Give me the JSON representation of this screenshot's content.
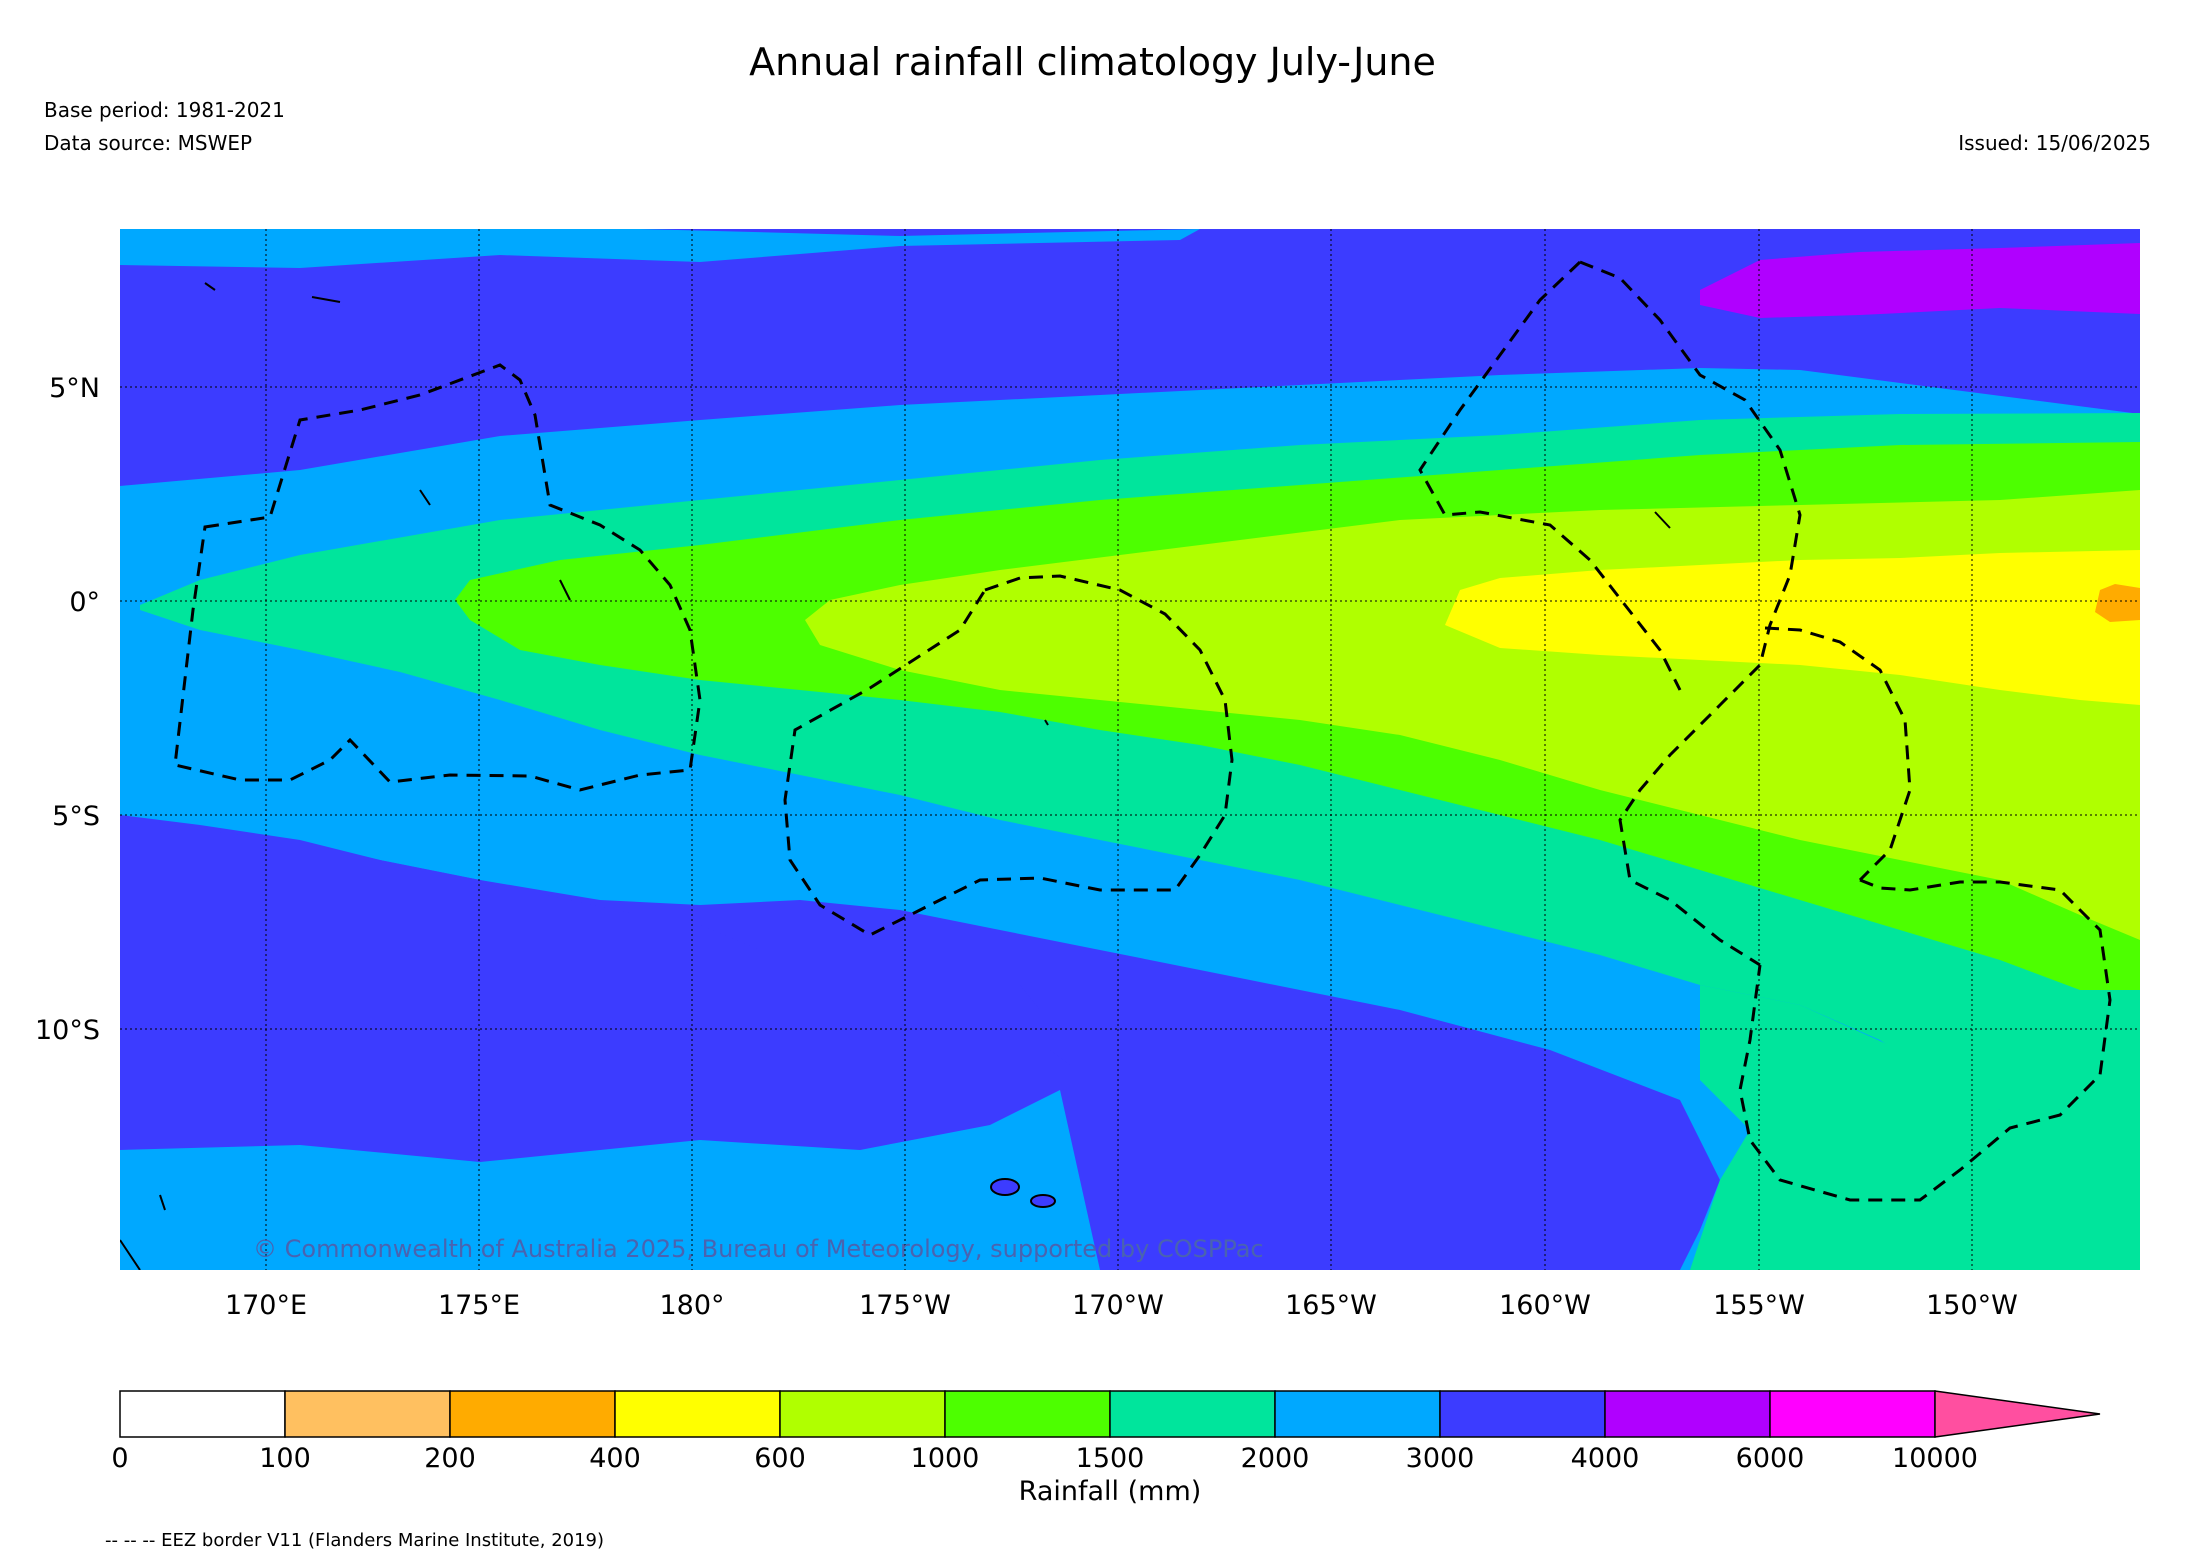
{
  "title": "Annual rainfall climatology July-June",
  "base_period": "Base period: 1981-2021",
  "data_source": "Data source: MSWEP",
  "issued": "Issued: 15/06/2025",
  "copyright": "© Commonwealth of Australia 2025, Bureau of Meteorology, supported by COSPPac",
  "footnote": "-- -- -- EEZ border V11 (Flanders Marine Institute, 2019)",
  "lat_ticks": [
    "5°N",
    "0°",
    "5°S",
    "10°S"
  ],
  "lon_ticks": [
    "170°E",
    "175°E",
    "180°",
    "175°W",
    "170°W",
    "165°W",
    "160°W",
    "155°W",
    "150°W"
  ],
  "colorbar": {
    "label": "Rainfall (mm)",
    "ticks": [
      "0",
      "100",
      "200",
      "400",
      "600",
      "1000",
      "1500",
      "2000",
      "3000",
      "4000",
      "6000",
      "10000"
    ],
    "colors": [
      "#ffffff",
      "#ffc060",
      "#ffab00",
      "#ffff00",
      "#b0ff00",
      "#4dff00",
      "#00e59c",
      "#00a8ff",
      "#3c3cff",
      "#b000ff",
      "#ff00ff"
    ],
    "extend_color": "#ff4fa0"
  },
  "map_legend": {
    "eez_border": "EEZ border"
  }
}
